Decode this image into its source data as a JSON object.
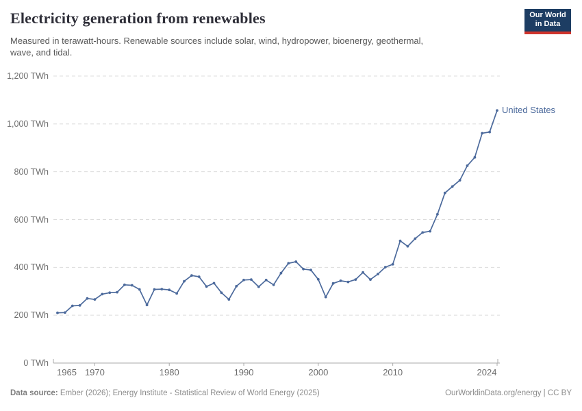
{
  "header": {
    "title": "Electricity generation from renewables",
    "subtitle_lines": [
      "Measured in terawatt-hours. Renewable sources include solar, wind, hydropower, bioenergy, geothermal,",
      "wave, and tidal."
    ],
    "logo": {
      "line1": "Our World",
      "line2": "in Data"
    }
  },
  "chart_data": {
    "type": "line",
    "title": "Electricity generation from renewables",
    "unit": "TWh",
    "xlim": [
      1965,
      2024
    ],
    "ylim": [
      0,
      1200
    ],
    "grid": "dashed-horizontal",
    "legend_position": "label-at-line-end",
    "x_ticks": [
      {
        "year": 1965,
        "label": "1965"
      },
      {
        "year": 1970,
        "label": "1970"
      },
      {
        "year": 1980,
        "label": "1980"
      },
      {
        "year": 1990,
        "label": "1990"
      },
      {
        "year": 2000,
        "label": "2000"
      },
      {
        "year": 2010,
        "label": "2010"
      },
      {
        "year": 2024,
        "label": "2024"
      }
    ],
    "y_ticks": [
      {
        "value": 0,
        "label": "0 TWh"
      },
      {
        "value": 200,
        "label": "200 TWh"
      },
      {
        "value": 400,
        "label": "400 TWh"
      },
      {
        "value": 600,
        "label": "600 TWh"
      },
      {
        "value": 800,
        "label": "800 TWh"
      },
      {
        "value": 1000,
        "label": "1,000 TWh"
      },
      {
        "value": 1200,
        "label": "1,200 TWh"
      }
    ],
    "series": [
      {
        "name": "United States",
        "color": "#4C6A9C",
        "years": [
          1965,
          1966,
          1967,
          1968,
          1969,
          1970,
          1971,
          1972,
          1973,
          1974,
          1975,
          1976,
          1977,
          1978,
          1979,
          1980,
          1981,
          1982,
          1983,
          1984,
          1985,
          1986,
          1987,
          1988,
          1989,
          1990,
          1991,
          1992,
          1993,
          1994,
          1995,
          1996,
          1997,
          1998,
          1999,
          2000,
          2001,
          2002,
          2003,
          2004,
          2005,
          2006,
          2007,
          2008,
          2009,
          2010,
          2011,
          2012,
          2013,
          2014,
          2015,
          2016,
          2017,
          2018,
          2019,
          2020,
          2021,
          2022,
          2023,
          2024
        ],
        "values": [
          210,
          211,
          239,
          241,
          270,
          266,
          288,
          294,
          296,
          327,
          325,
          308,
          243,
          308,
          309,
          306,
          291,
          342,
          366,
          361,
          320,
          334,
          294,
          266,
          321,
          347,
          349,
          319,
          347,
          327,
          376,
          417,
          424,
          393,
          389,
          350,
          276,
          333,
          344,
          339,
          349,
          379,
          349,
          372,
          401,
          413,
          511,
          488,
          520,
          546,
          551,
          622,
          711,
          738,
          764,
          825,
          860,
          961,
          966,
          1056
        ]
      }
    ]
  },
  "footer": {
    "source_label": "Data source:",
    "source_text": "Ember (2026); Energy Institute - Statistical Review of World Energy (2025)",
    "right_text": "OurWorldinData.org/energy | CC BY"
  },
  "colors": {
    "line": "#4C6A9C",
    "grid": "#dcdcdc",
    "axis": "#a8a8a8",
    "logo_background": "#1d3d63",
    "logo_bar": "#d0342c"
  }
}
